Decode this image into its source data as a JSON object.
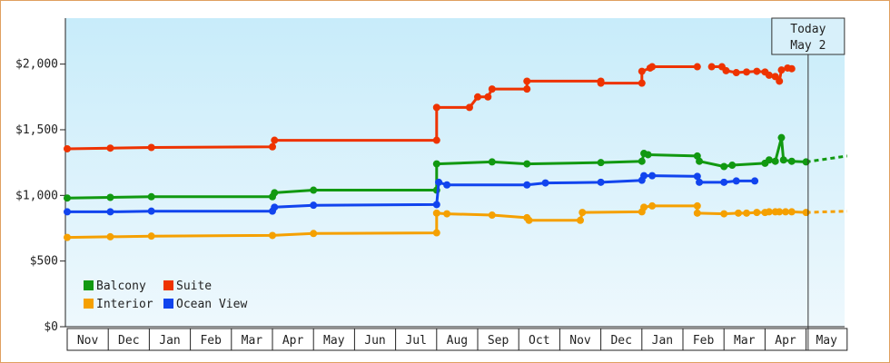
{
  "chart_data": {
    "type": "line",
    "ylim": [
      0,
      2350
    ],
    "yticks": [
      {
        "value": 0,
        "label": "$0"
      },
      {
        "value": 500,
        "label": "$500"
      },
      {
        "value": 1000,
        "label": "$1,000"
      },
      {
        "value": 1500,
        "label": "$1,500"
      },
      {
        "value": 2000,
        "label": "$2,000"
      }
    ],
    "months": [
      "Nov",
      "Dec",
      "Jan",
      "Feb",
      "Mar",
      "Apr",
      "May",
      "Jun",
      "Jul",
      "Aug",
      "Sep",
      "Oct",
      "Nov",
      "Dec",
      "Jan",
      "Feb",
      "Mar",
      "Apr",
      "May"
    ],
    "today": {
      "line1": "Today",
      "line2": "May 2",
      "x": 18.05
    },
    "background_gradient": [
      "#c8ecfa",
      "#eef8fd"
    ],
    "legend": {
      "placement": "bottom-left"
    },
    "series": [
      {
        "name": "Balcony",
        "color": "#119911",
        "points": [
          [
            0.0,
            980
          ],
          [
            1.05,
            985
          ],
          [
            2.05,
            990
          ],
          [
            5.0,
            990
          ],
          [
            5.05,
            1020
          ],
          [
            6.0,
            1040
          ],
          [
            9.0,
            1040
          ],
          [
            9.0,
            1240
          ],
          [
            10.35,
            1255
          ],
          [
            11.2,
            1240
          ],
          [
            13.0,
            1250
          ],
          [
            14.0,
            1260
          ],
          [
            14.05,
            1320
          ],
          [
            14.15,
            1310
          ],
          [
            15.35,
            1300
          ],
          [
            15.4,
            1260
          ],
          [
            16.0,
            1220
          ],
          [
            16.2,
            1230
          ],
          [
            17.0,
            1245
          ],
          [
            17.1,
            1270
          ],
          [
            17.25,
            1260
          ],
          [
            17.4,
            1440
          ],
          [
            17.45,
            1270
          ],
          [
            17.65,
            1260
          ],
          [
            18.0,
            1255
          ]
        ],
        "projection": [
          [
            18.0,
            1255
          ],
          [
            19.0,
            1300
          ]
        ]
      },
      {
        "name": "Suite",
        "color": "#ee3300",
        "points": [
          [
            0.0,
            1355
          ],
          [
            1.05,
            1360
          ],
          [
            2.05,
            1365
          ],
          [
            5.0,
            1370
          ],
          [
            5.05,
            1420
          ],
          [
            9.0,
            1420
          ],
          [
            9.0,
            1670
          ],
          [
            9.8,
            1670
          ],
          [
            10.0,
            1750
          ],
          [
            10.25,
            1750
          ],
          [
            10.35,
            1810
          ],
          [
            11.2,
            1810
          ],
          [
            11.2,
            1870
          ],
          [
            13.0,
            1870
          ],
          [
            13.0,
            1855
          ],
          [
            14.0,
            1855
          ],
          [
            14.0,
            1945
          ],
          [
            14.2,
            1970
          ],
          [
            14.25,
            1980
          ],
          [
            15.35,
            1980
          ]
        ],
        "points2": [
          [
            15.7,
            1980
          ],
          [
            15.95,
            1980
          ],
          [
            16.05,
            1950
          ],
          [
            16.3,
            1935
          ],
          [
            16.55,
            1940
          ],
          [
            16.8,
            1945
          ],
          [
            17.0,
            1940
          ],
          [
            17.1,
            1915
          ],
          [
            17.25,
            1905
          ],
          [
            17.35,
            1870
          ],
          [
            17.4,
            1955
          ],
          [
            17.55,
            1970
          ],
          [
            17.65,
            1965
          ]
        ],
        "projection": []
      },
      {
        "name": "Interior",
        "color": "#f5a000",
        "points": [
          [
            0.0,
            680
          ],
          [
            1.05,
            685
          ],
          [
            2.05,
            690
          ],
          [
            5.0,
            695
          ],
          [
            6.0,
            710
          ],
          [
            9.0,
            715
          ],
          [
            9.0,
            865
          ],
          [
            9.25,
            860
          ],
          [
            10.35,
            850
          ],
          [
            11.2,
            830
          ],
          [
            11.25,
            810
          ],
          [
            12.5,
            810
          ],
          [
            12.55,
            870
          ],
          [
            14.0,
            875
          ],
          [
            14.05,
            910
          ],
          [
            14.25,
            920
          ],
          [
            15.35,
            920
          ],
          [
            15.35,
            865
          ],
          [
            16.0,
            860
          ],
          [
            16.35,
            865
          ],
          [
            16.55,
            865
          ],
          [
            16.8,
            870
          ],
          [
            17.0,
            870
          ],
          [
            17.1,
            875
          ],
          [
            17.25,
            875
          ],
          [
            17.35,
            875
          ],
          [
            17.5,
            875
          ],
          [
            17.65,
            875
          ],
          [
            18.0,
            870
          ]
        ],
        "projection": [
          [
            18.0,
            870
          ],
          [
            19.0,
            880
          ]
        ]
      },
      {
        "name": "Ocean View",
        "color": "#1144ee",
        "points": [
          [
            0.0,
            875
          ],
          [
            1.05,
            875
          ],
          [
            2.05,
            880
          ],
          [
            5.0,
            880
          ],
          [
            5.05,
            910
          ],
          [
            6.0,
            925
          ],
          [
            9.0,
            930
          ],
          [
            9.05,
            1100
          ],
          [
            9.25,
            1080
          ],
          [
            11.2,
            1080
          ],
          [
            11.65,
            1095
          ],
          [
            13.0,
            1100
          ],
          [
            14.0,
            1115
          ],
          [
            14.05,
            1150
          ],
          [
            14.25,
            1150
          ],
          [
            15.35,
            1145
          ],
          [
            15.4,
            1100
          ],
          [
            16.0,
            1100
          ],
          [
            16.3,
            1110
          ],
          [
            16.75,
            1110
          ]
        ],
        "projection": []
      }
    ]
  }
}
